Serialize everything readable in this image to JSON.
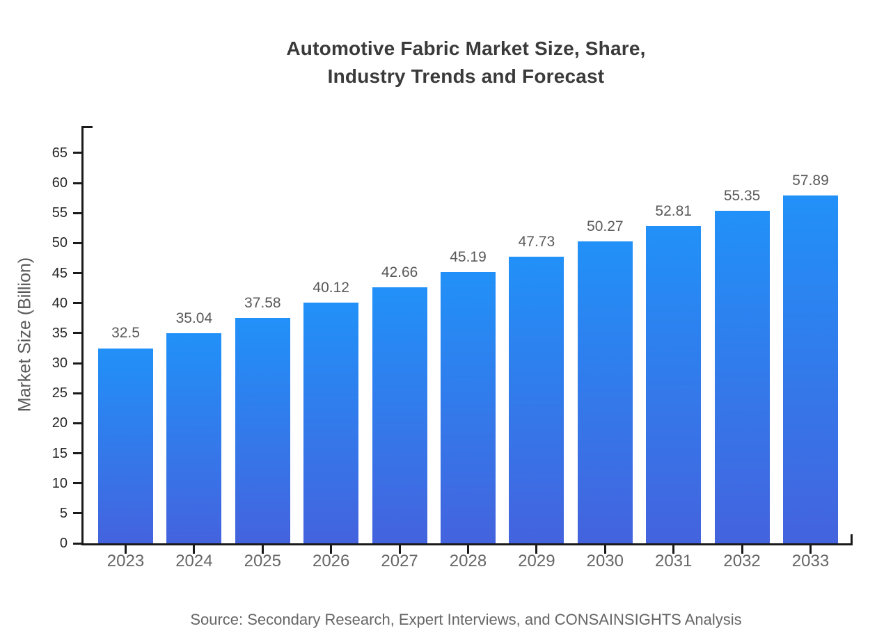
{
  "chart_data": {
    "type": "bar",
    "title": "Automotive Fabric Market Size, Share, Industry Trends and Forecast",
    "title_lines": [
      "Automotive Fabric Market Size, Share,",
      "Industry Trends and Forecast"
    ],
    "categories": [
      "2023",
      "2024",
      "2025",
      "2026",
      "2027",
      "2028",
      "2029",
      "2030",
      "2031",
      "2032",
      "2033"
    ],
    "values": [
      32.5,
      35.04,
      37.58,
      40.12,
      42.66,
      45.19,
      47.73,
      50.27,
      52.81,
      55.35,
      57.89
    ],
    "value_labels": [
      "32.5",
      "35.04",
      "37.58",
      "40.12",
      "42.66",
      "45.19",
      "47.73",
      "50.27",
      "52.81",
      "55.35",
      "57.89"
    ],
    "xlabel": "",
    "ylabel": "Market Size (Billion)",
    "y_ticks": [
      0,
      5,
      10,
      15,
      20,
      25,
      30,
      35,
      40,
      45,
      50,
      55,
      60,
      65
    ],
    "ylim": [
      0,
      69.5
    ],
    "grid": false,
    "legend": "none",
    "bar_gradient_top": "#2191f8",
    "bar_gradient_bottom": "#4463de",
    "axis_color": "#1a1a1a",
    "title_color": "#3a3a3a",
    "label_color": "#595959",
    "source": "Source: Secondary Research, Expert Interviews, and CONSAINSIGHTS Analysis"
  }
}
